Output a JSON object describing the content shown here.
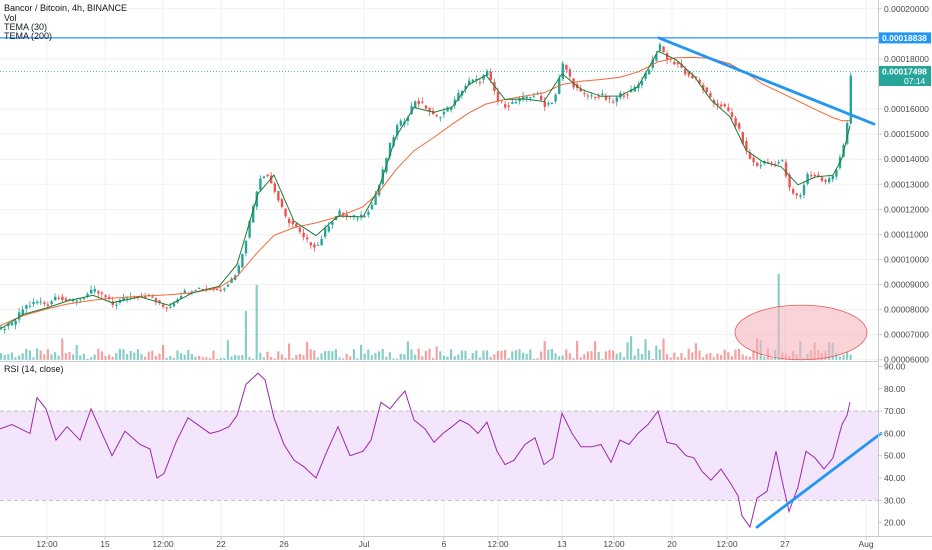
{
  "legend": {
    "main": "Bancor / Bitcoin, 4h, BINANCE",
    "vol": "Vol",
    "tema30": "TEMA (30)",
    "tema200": "TEMA (200)",
    "rsi": "RSI (14, close)"
  },
  "price_labels": {
    "resistance": "0.00018838",
    "last": "0.00017498",
    "countdown": "07:14"
  },
  "colors": {
    "up": "#26a69a",
    "down": "#ef5350",
    "tema30": "#1e7a34",
    "tema200": "#f06a3a",
    "hline": "#2196f3",
    "trend": "#2196f3",
    "rsi": "#9c27b0",
    "rsi_band": "#f3e5fb",
    "volume_highlight": "#f7b5c0"
  },
  "chart_data": [
    {
      "type": "candlestick",
      "title": "Bancor / Bitcoin, 4h, BINANCE",
      "ylim": [
        5.95e-05,
        0.0002035
      ],
      "y_ticks": [
        "0.00020000",
        "0.00018000",
        "0.00016000",
        "0.00015000",
        "0.00014000",
        "0.00013000",
        "0.00012000",
        "0.00011000",
        "0.00010000",
        "0.00009000",
        "0.00008000",
        "0.00007000",
        "0.00006000"
      ],
      "x_ticks": [
        "12:00",
        "15",
        "12:00",
        "22",
        "26",
        "Jul",
        "6",
        "12:00",
        "13",
        "12:00",
        "20",
        "12:00",
        "27",
        "Aug"
      ],
      "close_path": [
        [
          0,
          7.24e-05
        ],
        [
          12,
          7.42e-05
        ],
        [
          23,
          8.11e-05
        ],
        [
          37,
          8.32e-05
        ],
        [
          46,
          8.2e-05
        ],
        [
          56,
          8.59e-05
        ],
        [
          67,
          8.3e-05
        ],
        [
          80,
          8.46e-05
        ],
        [
          93,
          8.75e-05
        ],
        [
          104,
          8.49e-05
        ],
        [
          112,
          8.18e-05
        ],
        [
          125,
          8.49e-05
        ],
        [
          140,
          8.57e-05
        ],
        [
          150,
          8.51e-05
        ],
        [
          161,
          8.11e-05
        ],
        [
          169,
          8.15e-05
        ],
        [
          180,
          8.63e-05
        ],
        [
          193,
          8.85e-05
        ],
        [
          210,
          8.83e-05
        ],
        [
          219,
          8.81e-05
        ],
        [
          229,
          9.13e-05
        ],
        [
          237,
          9.62e-05
        ],
        [
          246,
          0.0001104
        ],
        [
          258,
          0.0001324
        ],
        [
          265,
          0.0001347
        ],
        [
          274,
          0.000127
        ],
        [
          284,
          0.0001167
        ],
        [
          294,
          0.0001131
        ],
        [
          304,
          0.0001075
        ],
        [
          316,
          0.0001052
        ],
        [
          327,
          0.0001139
        ],
        [
          338,
          0.0001187
        ],
        [
          350,
          0.0001163
        ],
        [
          363,
          0.0001179
        ],
        [
          371,
          0.0001219
        ],
        [
          379,
          0.0001308
        ],
        [
          387,
          0.0001436
        ],
        [
          396,
          0.000153
        ],
        [
          405,
          0.0001563
        ],
        [
          414,
          0.0001635
        ],
        [
          425,
          0.0001606
        ],
        [
          434,
          0.0001564
        ],
        [
          443,
          0.0001588
        ],
        [
          452,
          0.0001619
        ],
        [
          460,
          0.0001677
        ],
        [
          469,
          0.0001711
        ],
        [
          478,
          0.0001712
        ],
        [
          486,
          0.0001745
        ],
        [
          497,
          0.000163
        ],
        [
          505,
          0.0001615
        ],
        [
          514,
          0.0001626
        ],
        [
          525,
          0.0001649
        ],
        [
          535,
          0.0001659
        ],
        [
          544,
          0.0001616
        ],
        [
          553,
          0.0001636
        ],
        [
          562,
          0.0001783
        ],
        [
          572,
          0.0001699
        ],
        [
          581,
          0.0001655
        ],
        [
          592,
          0.0001651
        ],
        [
          601,
          0.0001652
        ],
        [
          611,
          0.0001623
        ],
        [
          620,
          0.0001661
        ],
        [
          629,
          0.0001664
        ],
        [
          638,
          0.0001702
        ],
        [
          648,
          0.0001764
        ],
        [
          658,
          0.0001853
        ],
        [
          667,
          0.0001794
        ],
        [
          676,
          0.0001783
        ],
        [
          686,
          0.0001738
        ],
        [
          694,
          0.0001719
        ],
        [
          702,
          0.0001682
        ],
        [
          711,
          0.0001626
        ],
        [
          721,
          0.0001616
        ],
        [
          730,
          0.0001573
        ],
        [
          738,
          0.0001511
        ],
        [
          746,
          0.0001419
        ],
        [
          755,
          0.0001372
        ],
        [
          763,
          0.0001388
        ],
        [
          772,
          0.0001384
        ],
        [
          781,
          0.0001391
        ],
        [
          789,
          0.0001271
        ],
        [
          798,
          0.0001244
        ],
        [
          806,
          0.0001339
        ],
        [
          815,
          0.0001336
        ],
        [
          824,
          0.0001305
        ],
        [
          833,
          0.0001339
        ],
        [
          842,
          0.0001451
        ],
        [
          847,
          0.0001561
        ],
        [
          850,
          0.0001749
        ]
      ],
      "tema30_path": [
        [
          0,
          7.22e-05
        ],
        [
          23,
          7.81e-05
        ],
        [
          46,
          8.06e-05
        ],
        [
          67,
          8.34e-05
        ],
        [
          93,
          8.57e-05
        ],
        [
          112,
          8.27e-05
        ],
        [
          140,
          8.51e-05
        ],
        [
          169,
          8.17e-05
        ],
        [
          193,
          8.68e-05
        ],
        [
          219,
          8.93e-05
        ],
        [
          237,
          9.8e-05
        ],
        [
          258,
          0.0001262
        ],
        [
          274,
          0.0001337
        ],
        [
          294,
          0.0001153
        ],
        [
          316,
          0.0001095
        ],
        [
          338,
          0.0001173
        ],
        [
          363,
          0.000117
        ],
        [
          379,
          0.0001286
        ],
        [
          396,
          0.000149
        ],
        [
          414,
          0.0001606
        ],
        [
          434,
          0.0001587
        ],
        [
          452,
          0.0001607
        ],
        [
          469,
          0.0001698
        ],
        [
          486,
          0.0001735
        ],
        [
          505,
          0.0001638
        ],
        [
          525,
          0.000164
        ],
        [
          544,
          0.000163
        ],
        [
          562,
          0.0001741
        ],
        [
          581,
          0.0001679
        ],
        [
          601,
          0.0001651
        ],
        [
          620,
          0.0001652
        ],
        [
          638,
          0.0001689
        ],
        [
          658,
          0.0001831
        ],
        [
          676,
          0.0001797
        ],
        [
          694,
          0.0001732
        ],
        [
          711,
          0.0001636
        ],
        [
          730,
          0.0001569
        ],
        [
          746,
          0.0001436
        ],
        [
          763,
          0.0001389
        ],
        [
          781,
          0.000137
        ],
        [
          798,
          0.0001298
        ],
        [
          815,
          0.0001329
        ],
        [
          833,
          0.0001336
        ],
        [
          842,
          0.0001404
        ],
        [
          850,
          0.0001533
        ]
      ],
      "tema200_path": [
        [
          0,
          7.36e-05
        ],
        [
          23,
          7.76e-05
        ],
        [
          46,
          8.02e-05
        ],
        [
          67,
          8.22e-05
        ],
        [
          93,
          8.38e-05
        ],
        [
          112,
          8.46e-05
        ],
        [
          140,
          8.53e-05
        ],
        [
          169,
          8.59e-05
        ],
        [
          193,
          8.67e-05
        ],
        [
          219,
          8.88e-05
        ],
        [
          237,
          9.32e-05
        ],
        [
          258,
          0.000103
        ],
        [
          274,
          0.0001096
        ],
        [
          294,
          0.0001127
        ],
        [
          316,
          0.0001146
        ],
        [
          338,
          0.000117
        ],
        [
          363,
          0.000121
        ],
        [
          379,
          0.0001268
        ],
        [
          396,
          0.0001358
        ],
        [
          414,
          0.0001434
        ],
        [
          434,
          0.0001487
        ],
        [
          452,
          0.0001539
        ],
        [
          469,
          0.0001585
        ],
        [
          486,
          0.000162
        ],
        [
          505,
          0.0001638
        ],
        [
          525,
          0.0001652
        ],
        [
          544,
          0.0001665
        ],
        [
          562,
          0.0001698
        ],
        [
          581,
          0.0001711
        ],
        [
          601,
          0.0001718
        ],
        [
          620,
          0.0001727
        ],
        [
          638,
          0.0001748
        ],
        [
          658,
          0.0001788
        ],
        [
          676,
          0.0001805
        ],
        [
          694,
          0.0001806
        ],
        [
          711,
          0.0001802
        ],
        [
          730,
          0.000178
        ],
        [
          746,
          0.0001744
        ],
        [
          763,
          0.0001699
        ],
        [
          781,
          0.0001665
        ],
        [
          798,
          0.0001632
        ],
        [
          815,
          0.0001599
        ],
        [
          833,
          0.0001566
        ],
        [
          842,
          0.0001553
        ],
        [
          850,
          0.0001553
        ]
      ],
      "resistance_level": 0.00018838,
      "last_price": 0.00017498,
      "trendline": [
        [
          659,
          0.00018838
        ],
        [
          874,
          0.000154
        ]
      ],
      "volume_highlight_ellipse": [
        735,
        867,
        6e-05,
        8.18e-05
      ],
      "volume_spikes": [
        [
          776,
          9.42e-05
        ],
        [
          245,
          7.95e-05
        ],
        [
          255,
          8.98e-05
        ]
      ]
    },
    {
      "type": "line",
      "title": "RSI (14, close)",
      "ylim": [
        14,
        92
      ],
      "y_ticks": [
        "90.00",
        "80.00",
        "70.00",
        "60.00",
        "50.00",
        "40.00",
        "30.00",
        "20.00"
      ],
      "band": [
        30,
        70
      ],
      "rsi_path": [
        [
          0,
          62
        ],
        [
          12,
          64
        ],
        [
          30,
          60
        ],
        [
          37,
          76
        ],
        [
          46,
          71
        ],
        [
          56,
          57
        ],
        [
          67,
          63
        ],
        [
          80,
          57
        ],
        [
          91,
          71
        ],
        [
          104,
          58
        ],
        [
          112,
          50
        ],
        [
          125,
          61
        ],
        [
          140,
          55
        ],
        [
          150,
          53
        ],
        [
          157,
          40
        ],
        [
          164,
          42
        ],
        [
          176,
          56
        ],
        [
          188,
          67
        ],
        [
          210,
          60
        ],
        [
          219,
          61
        ],
        [
          229,
          63
        ],
        [
          237,
          68
        ],
        [
          246,
          82
        ],
        [
          258,
          87
        ],
        [
          265,
          84
        ],
        [
          274,
          67
        ],
        [
          284,
          55
        ],
        [
          294,
          48
        ],
        [
          304,
          45
        ],
        [
          316,
          40
        ],
        [
          327,
          52
        ],
        [
          338,
          63
        ],
        [
          350,
          50
        ],
        [
          363,
          52
        ],
        [
          371,
          57
        ],
        [
          381,
          74
        ],
        [
          390,
          71
        ],
        [
          399,
          76
        ],
        [
          405,
          79
        ],
        [
          414,
          66
        ],
        [
          425,
          62
        ],
        [
          434,
          56
        ],
        [
          443,
          60
        ],
        [
          452,
          63
        ],
        [
          460,
          66
        ],
        [
          469,
          64
        ],
        [
          478,
          60
        ],
        [
          487,
          65
        ],
        [
          497,
          52
        ],
        [
          505,
          46
        ],
        [
          514,
          48
        ],
        [
          525,
          55
        ],
        [
          535,
          58
        ],
        [
          544,
          46
        ],
        [
          553,
          49
        ],
        [
          562,
          69
        ],
        [
          572,
          60
        ],
        [
          581,
          54
        ],
        [
          592,
          54
        ],
        [
          601,
          55
        ],
        [
          611,
          47
        ],
        [
          620,
          57
        ],
        [
          629,
          55
        ],
        [
          638,
          60
        ],
        [
          648,
          64
        ],
        [
          658,
          70
        ],
        [
          667,
          56
        ],
        [
          676,
          55
        ],
        [
          686,
          50
        ],
        [
          694,
          49
        ],
        [
          702,
          43
        ],
        [
          711,
          39
        ],
        [
          721,
          44
        ],
        [
          730,
          38
        ],
        [
          738,
          32
        ],
        [
          742,
          23
        ],
        [
          750,
          18
        ],
        [
          757,
          31
        ],
        [
          767,
          34
        ],
        [
          776,
          52
        ],
        [
          781,
          41
        ],
        [
          789,
          25
        ],
        [
          798,
          36
        ],
        [
          806,
          52
        ],
        [
          815,
          49
        ],
        [
          824,
          44
        ],
        [
          833,
          49
        ],
        [
          842,
          64
        ],
        [
          847,
          68
        ],
        [
          850,
          74
        ]
      ],
      "trendline": [
        [
          757,
          18
        ],
        [
          881,
          60
        ]
      ]
    }
  ]
}
